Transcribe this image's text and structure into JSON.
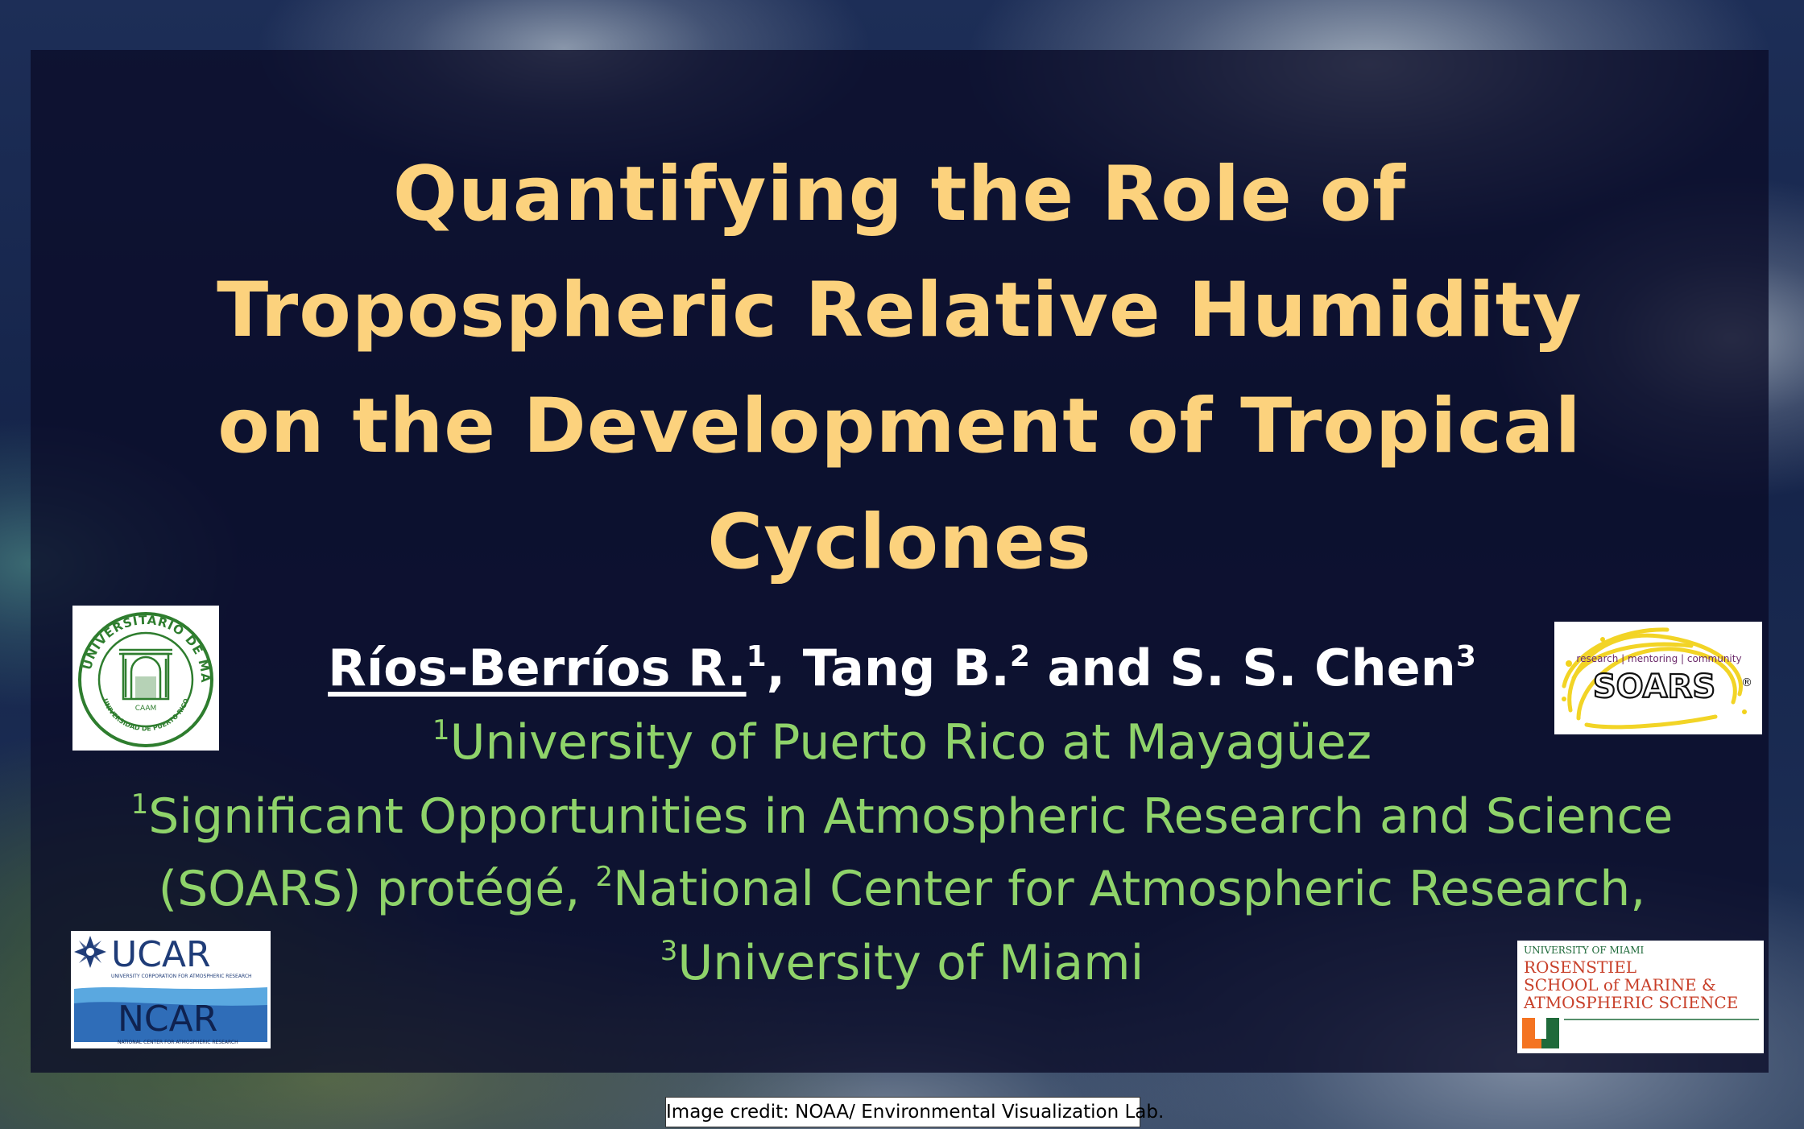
{
  "title": {
    "line1": "Quantifying the Role of",
    "line2": "Tropospheric Relative Humidity",
    "line3": "on the Development of Tropical",
    "line4": "Cyclones"
  },
  "authors": {
    "lead": "Ríos-Berríos R.",
    "lead_sup": "1",
    "second": ", Tang B.",
    "second_sup": "2",
    "third": " and S. S. Chen",
    "third_sup": "3"
  },
  "affiliations": {
    "line1_sup": "1",
    "line1": "University of Puerto Rico at Mayagüez",
    "line2_sup": "1",
    "line2": "Significant Opportunities in Atmospheric Research and Science",
    "line3_a": "(SOARS) protégé, ",
    "line3_sup": "2",
    "line3_b": "National Center for Atmospheric Research,",
    "line4_sup": "3",
    "line4": "University of Miami"
  },
  "logos": {
    "uprm": {
      "ring_text": "RECINTO UNIVERSITARIO DE MAYAGÜEZ",
      "bottom_text": "UNIVERSIDAD DE PUERTO RICO",
      "mark": "CAAM",
      "color": "#2e7d2e"
    },
    "soars": {
      "tagline": "research | mentoring | community",
      "name": "SOARS",
      "registered": "®",
      "swirl_color": "#f2d21b"
    },
    "ucar": {
      "name": "UCAR",
      "subtitle": "UNIVERSITY CORPORATION FOR ATMOSPHERIC RESEARCH",
      "ncar": "NCAR",
      "ncar_subtitle": "NATIONAL CENTER FOR ATMOSPHERIC RESEARCH",
      "color": "#1f3c78"
    },
    "rsmas": {
      "line1": "UNIVERSITY OF MIAMI",
      "line2": "ROSENSTIEL",
      "line3": "SCHOOL of MARINE &",
      "line4": "ATMOSPHERIC SCIENCE",
      "red_color": "#c8402a",
      "green_color": "#1f6a3a",
      "orange_color": "#f47321"
    }
  },
  "credit": "Image credit: NOAA/ Environmental Visualization Lab.",
  "colors": {
    "title": "#fcd27d",
    "authors": "#ffffff",
    "affiliations": "#8fd36a",
    "panel": "rgba(10,12,40,0.78)"
  }
}
